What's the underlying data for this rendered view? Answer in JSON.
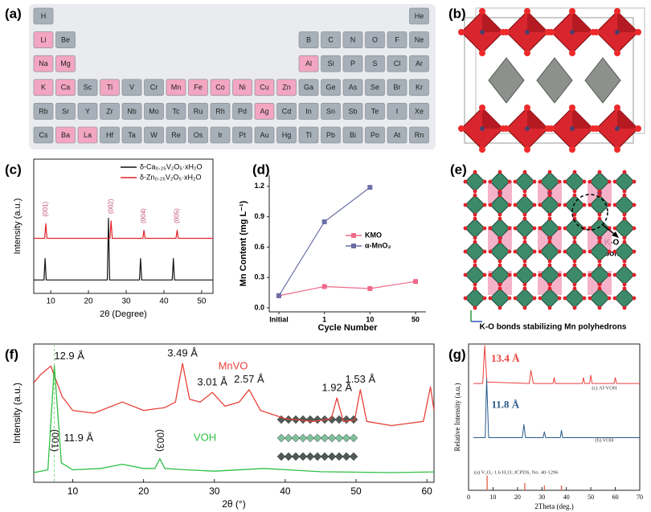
{
  "panel_labels": [
    "(a)",
    "(b)",
    "(c)",
    "(d)",
    "(e)",
    "(f)",
    "(g)"
  ],
  "periodic_table": {
    "rows": [
      [
        "H",
        null,
        null,
        null,
        null,
        null,
        null,
        null,
        null,
        null,
        null,
        null,
        null,
        null,
        null,
        null,
        null,
        "He"
      ],
      [
        "Li",
        "Be",
        null,
        null,
        null,
        null,
        null,
        null,
        null,
        null,
        null,
        null,
        "B",
        "C",
        "N",
        "O",
        "F",
        "Ne"
      ],
      [
        "Na",
        "Mg",
        null,
        null,
        null,
        null,
        null,
        null,
        null,
        null,
        null,
        null,
        "Al",
        "Si",
        "P",
        "S",
        "Cl",
        "Ar"
      ],
      [
        "K",
        "Ca",
        "Sc",
        "Ti",
        "V",
        "Cr",
        "Mn",
        "Fe",
        "Co",
        "Ni",
        "Cu",
        "Zn",
        "Ga",
        "Ge",
        "As",
        "Se",
        "Br",
        "Kr"
      ],
      [
        "Rb",
        "Sr",
        "Y",
        "Zr",
        "Nb",
        "Mo",
        "Tc",
        "Ru",
        "Rh",
        "Pd",
        "Ag",
        "Cd",
        "In",
        "Sn",
        "Sb",
        "Te",
        "I",
        "Xe"
      ],
      [
        "Cs",
        "Ba",
        "La",
        "Hf",
        "Ta",
        "W",
        "Re",
        "Os",
        "Ir",
        "Pt",
        "Au",
        "Hg",
        "Tl",
        "Pb",
        "Bi",
        "Po",
        "At",
        "Rn"
      ]
    ],
    "highlighted": [
      "Li",
      "Na",
      "Mg",
      "Al",
      "K",
      "Ca",
      "Ti",
      "Mn",
      "Fe",
      "Co",
      "Ni",
      "Cu",
      "Zn",
      "Ag",
      "Ba",
      "La"
    ],
    "highlight_color": "#f3a6c1",
    "color": "#a7afb8"
  },
  "panel_e": {
    "callout": [
      "K-O",
      "bonds"
    ],
    "caption": "K-O bonds stabilizing Mn polyhedrons"
  },
  "chart_data": [
    {
      "type": "line",
      "xlabel": "2θ (Degree)",
      "ylabel": "Intensity (a.u.)",
      "xlim": [
        5.5,
        53
      ],
      "xticks": [
        10,
        20,
        30,
        40,
        50
      ],
      "ylim": [
        0,
        100
      ],
      "legend": "upper right",
      "series": [
        {
          "name": "δ-Ca₀.₂₅V₂O₅·xH₂O",
          "color": "#111111",
          "x": [
            5.5,
            8.2,
            8.5,
            8.8,
            25.0,
            25.3,
            25.6,
            33.5,
            33.8,
            34.1,
            42.2,
            42.5,
            42.8,
            53
          ],
          "values": [
            10,
            10,
            26,
            10,
            10,
            56,
            10,
            10,
            26,
            10,
            10,
            26,
            10,
            10
          ]
        },
        {
          "name": "δ-Zn₀.₂₅V₂O₅·xH₂O",
          "color": "#e0242a",
          "x": [
            5.5,
            8.4,
            8.7,
            9.0,
            25.7,
            26.0,
            26.3,
            34.4,
            34.7,
            35.0,
            43.2,
            43.5,
            43.8,
            53
          ],
          "values": [
            41,
            41,
            52,
            41,
            41,
            54,
            41,
            41,
            47,
            41,
            41,
            47,
            41,
            41
          ]
        }
      ],
      "peak_labels": [
        {
          "text": "(001)",
          "x": 8.7,
          "series": 1
        },
        {
          "text": "(002)",
          "x": 26.0,
          "series": 1
        },
        {
          "text": "(004)",
          "x": 34.7,
          "series": 1
        },
        {
          "text": "(005)",
          "x": 43.5,
          "series": 1
        }
      ],
      "peak_label_color": "#c0507a"
    },
    {
      "type": "line",
      "xlabel": "Cycle Number",
      "ylabel": "Mn Content (mg L⁻¹)",
      "categories": [
        "Initial",
        "1",
        "10",
        "50"
      ],
      "ylim": [
        -0.04,
        1.31
      ],
      "yticks": [
        {
          "value": 0,
          "label": "0.0"
        },
        {
          "value": 0.3,
          "label": "0.3"
        },
        {
          "value": 0.6,
          "label": "0.6"
        },
        {
          "value": 0.9,
          "label": "0.9"
        },
        {
          "value": 1.2,
          "label": "1.2"
        }
      ],
      "legend": "center right",
      "series": [
        {
          "name": "KMO",
          "color": "#f06a8a",
          "marker": "square",
          "values": [
            0.12,
            0.21,
            0.19,
            0.26
          ]
        },
        {
          "name": "α-MnO₂",
          "color": "#6b6fa6",
          "marker": "square",
          "values": [
            0.12,
            0.85,
            1.19,
            null
          ]
        }
      ]
    },
    {
      "type": "line",
      "xlabel": "2θ (°)",
      "ylabel": "Intensity (a.u.)",
      "xlim": [
        4.5,
        61
      ],
      "xticks": [
        10,
        20,
        30,
        40,
        50,
        60
      ],
      "ylim": [
        0,
        100
      ],
      "legend": "inline",
      "series": [
        {
          "name": "MnVO",
          "color": "#e8413a",
          "x": [
            4.5,
            5.5,
            6.9,
            8.5,
            10,
            13,
            17,
            20,
            23,
            24.5,
            25.5,
            26.5,
            28,
            29.7,
            31.5,
            33.5,
            34.9,
            36.5,
            40,
            44,
            46.5,
            47.3,
            48.2,
            49.8,
            50.6,
            51.5,
            55,
            59.5,
            60.5,
            61
          ],
          "values": [
            72,
            78,
            84,
            62,
            52,
            50,
            58,
            52,
            54,
            58,
            86,
            60,
            58,
            65,
            55,
            58,
            67,
            52,
            46,
            44,
            46,
            61,
            44,
            45,
            67,
            44,
            41,
            44,
            69,
            52
          ]
        },
        {
          "name": "VOH",
          "color": "#2fc043",
          "x": [
            4.5,
            6.5,
            7.4,
            8.4,
            10,
            14,
            17,
            20,
            21.6,
            22.3,
            23,
            26,
            30,
            37,
            45,
            55,
            61
          ],
          "values": [
            7,
            9,
            84,
            14,
            9,
            10,
            13,
            10,
            10,
            17,
            10,
            9,
            8,
            10,
            7.6,
            7,
            7.5
          ]
        }
      ],
      "annotations": [
        {
          "text": "12.9 Å",
          "x": 6.9,
          "series": 0
        },
        {
          "text": "3.49 Å",
          "x": 25.5,
          "series": 0
        },
        {
          "text": "3.01 Å",
          "x": 29.7,
          "series": 0
        },
        {
          "text": "2.57 Å",
          "x": 34.9,
          "series": 0
        },
        {
          "text": "1.92 Å",
          "x": 47.3,
          "series": 0
        },
        {
          "text": "1.53 Å",
          "x": 50.6,
          "series": 0
        },
        {
          "text": "11.9 Å",
          "x": 7.4,
          "series": 1
        }
      ],
      "peak_labels": [
        {
          "text": "(001)",
          "x": 7.4,
          "series": 1
        },
        {
          "text": "(003)",
          "x": 22.3,
          "series": 1
        }
      ],
      "peak_label_color": "#111111",
      "reference_line": {
        "x": 7.4,
        "color": "#7fd67f"
      }
    },
    {
      "type": "line",
      "xlabel": "2Theta (deg.)",
      "ylabel": "Relative Intensity (a.u.)",
      "xlim": [
        0,
        70
      ],
      "xticks": [
        0,
        10,
        20,
        30,
        40,
        50,
        60,
        70
      ],
      "ylim": [
        0,
        100
      ],
      "legend": "inline",
      "series": [
        {
          "name": "(c) Al-VOH",
          "color": "#e8413a",
          "x": [
            2,
            5.8,
            6.6,
            7.5,
            24.8,
            25.5,
            26.5,
            34.5,
            35,
            35.5,
            46.5,
            47,
            47.5,
            49.5,
            50,
            50.5,
            59.5,
            60,
            60.5,
            70
          ],
          "values": [
            73,
            73,
            99,
            74,
            73,
            82,
            73,
            73,
            77,
            73,
            73,
            77,
            73,
            73,
            78.6,
            73,
            73,
            77,
            73,
            73
          ]
        },
        {
          "name": "(b) VOH",
          "color": "#2a5a8a",
          "x": [
            2,
            6.8,
            7.4,
            8.2,
            22,
            22.6,
            23.3,
            30.5,
            31,
            31.5,
            37.5,
            38,
            38.5,
            70
          ],
          "values": [
            36,
            36,
            76,
            36,
            36,
            45,
            36,
            36,
            40,
            36,
            36,
            41,
            36,
            36
          ]
        },
        {
          "name": "(a) V₂O₅·1.6 H₂O; JCPDS, No. 40-1296",
          "color": "#e06040",
          "style": "stick",
          "x": [
            7.6,
            23,
            31,
            38
          ],
          "values": [
            10,
            5,
            3.3,
            3.3
          ]
        }
      ],
      "annotations": [
        {
          "text": "13.4 Å",
          "x": 6.6,
          "series": 0,
          "color": "#e8413a"
        },
        {
          "text": "11.8 Å",
          "x": 7.4,
          "series": 1,
          "color": "#2a5a8a"
        }
      ]
    }
  ]
}
